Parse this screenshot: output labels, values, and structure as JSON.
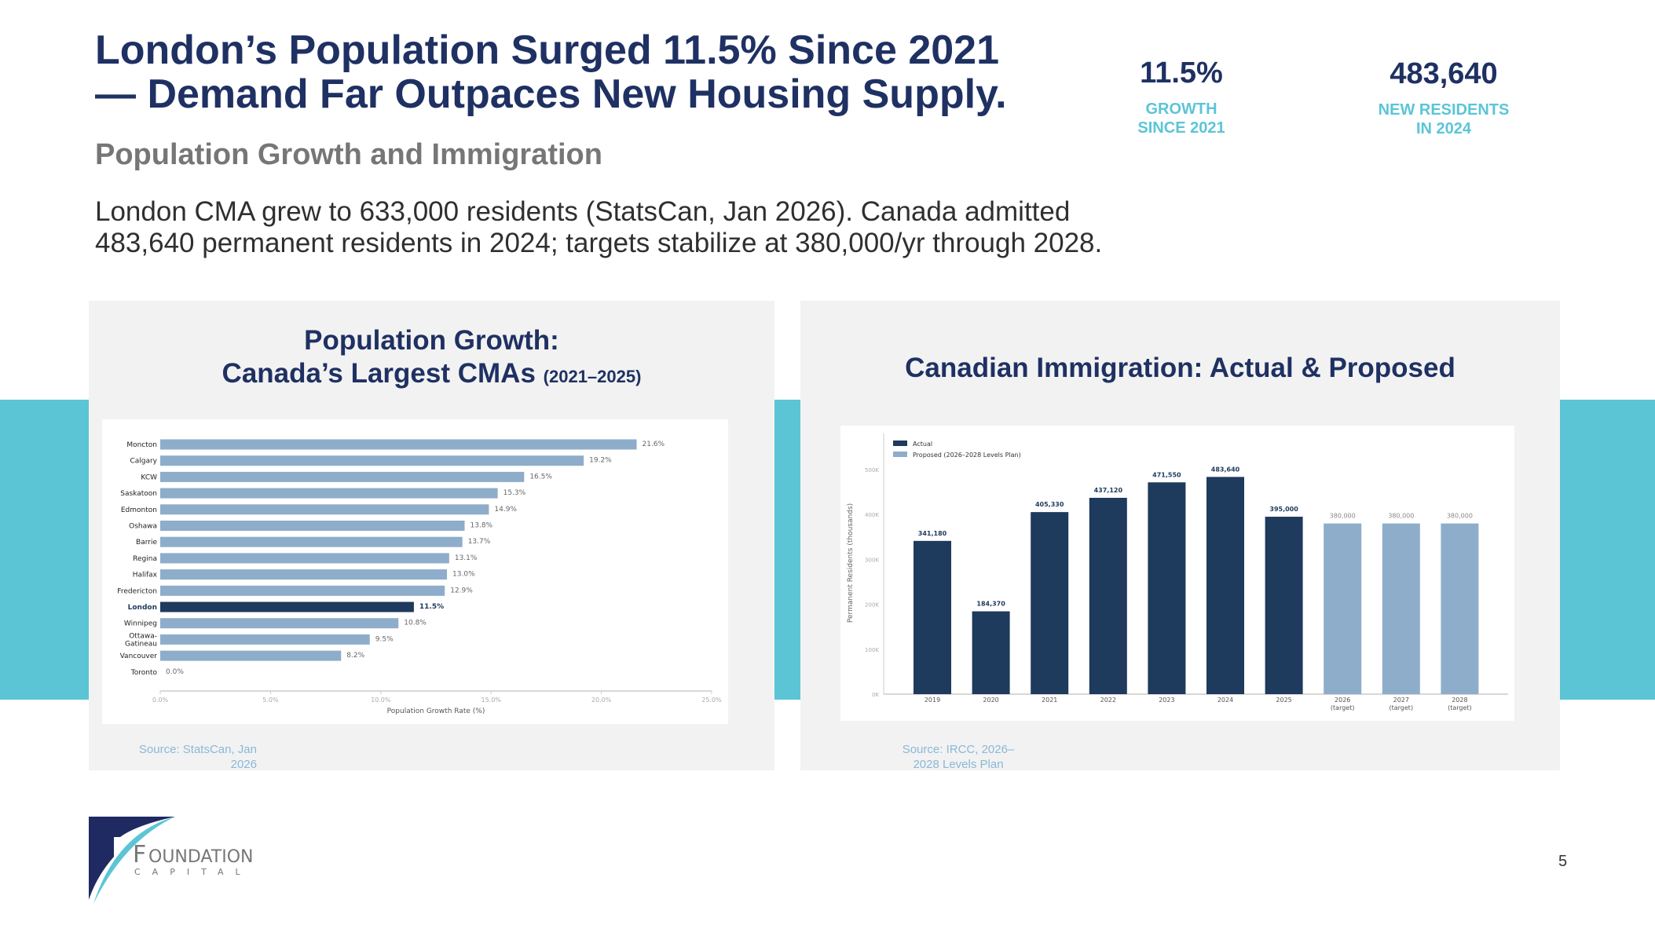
{
  "header": {
    "title_line1": "London’s Population Surged 11.5% Since 2021",
    "title_line2": "— Demand Far Outpaces New Housing Supply.",
    "subtitle": "Population Growth and Immigration",
    "body": "London CMA grew to 633,000 residents (StatsCan, Jan 2026). Canada admitted 483,640 permanent residents in 2024; targets stabilize at 380,000/yr through 2028."
  },
  "kpis": [
    {
      "value": "11.5%",
      "label1": "GROWTH",
      "label2": "SINCE 2021"
    },
    {
      "value": "483,640",
      "label1": "NEW RESIDENTS",
      "label2": "IN 2024"
    }
  ],
  "left_panel": {
    "title_line1": "Population Growth:",
    "title_line2": "Canada’s Largest CMAs",
    "title_suffix": "(2021–2025)",
    "source_line1": "Source: StatsCan, Jan",
    "source_line2": "2026"
  },
  "right_panel": {
    "title": "Canadian Immigration: Actual & Proposed",
    "source_line1": "Source: IRCC, 2026–",
    "source_line2": "2028 Levels Plan"
  },
  "colors": {
    "navy": "#1f3163",
    "teal": "#5bc5d6",
    "bar_light": "#8eadca",
    "bar_dark": "#1e3a5c"
  },
  "chart_data": [
    {
      "type": "bar",
      "orientation": "horizontal",
      "categories": [
        "Moncton",
        "Calgary",
        "KCW",
        "Saskatoon",
        "Edmonton",
        "Oshawa",
        "Barrie",
        "Regina",
        "Halifax",
        "Fredericton",
        "London",
        "Winnipeg",
        "Ottawa-Gatineau",
        "Vancouver",
        "Toronto"
      ],
      "values": [
        21.6,
        19.2,
        16.5,
        15.3,
        14.9,
        13.8,
        13.7,
        13.1,
        13.0,
        12.9,
        11.5,
        10.8,
        9.5,
        8.2,
        0.0
      ],
      "labels": [
        "21.6%",
        "19.2%",
        "16.5%",
        "15.3%",
        "14.9%",
        "13.8%",
        "13.7%",
        "13.1%",
        "13.0%",
        "12.9%",
        "11.5%",
        "10.8%",
        "9.5%",
        "8.2%",
        "0.0%"
      ],
      "highlight": "London",
      "xlabel": "Population Growth Rate (%)",
      "xlim": [
        0,
        25
      ],
      "xticks": [
        "0.0%",
        "5.0%",
        "10.0%",
        "15.0%",
        "20.0%",
        "25.0%"
      ]
    },
    {
      "type": "bar",
      "categories": [
        "2019",
        "2020",
        "2021",
        "2022",
        "2023",
        "2024",
        "2025",
        "2026\n(target)",
        "2027\n(target)",
        "2028\n(target)"
      ],
      "series": [
        {
          "name": "Actual",
          "values": [
            341180,
            184370,
            405330,
            437120,
            471550,
            483640,
            395000,
            null,
            null,
            null
          ]
        },
        {
          "name": "Proposed (2026–2028 Levels Plan)",
          "values": [
            null,
            null,
            null,
            null,
            null,
            null,
            null,
            380000,
            380000,
            380000
          ]
        }
      ],
      "labels": [
        "341,180",
        "184,370",
        "405,330",
        "437,120",
        "471,550",
        "483,640",
        "395,000",
        "380,000",
        "380,000",
        "380,000"
      ],
      "ylabel": "Permanent Residents (thousands)",
      "ylim": [
        0,
        500000
      ],
      "yticks": [
        "0K",
        "100K",
        "200K",
        "300K",
        "400K",
        "500K"
      ],
      "legend": "top-left"
    }
  ],
  "page_number": "5",
  "logo": {
    "name": "FOUNDATION",
    "sub": "CAPITAL"
  }
}
